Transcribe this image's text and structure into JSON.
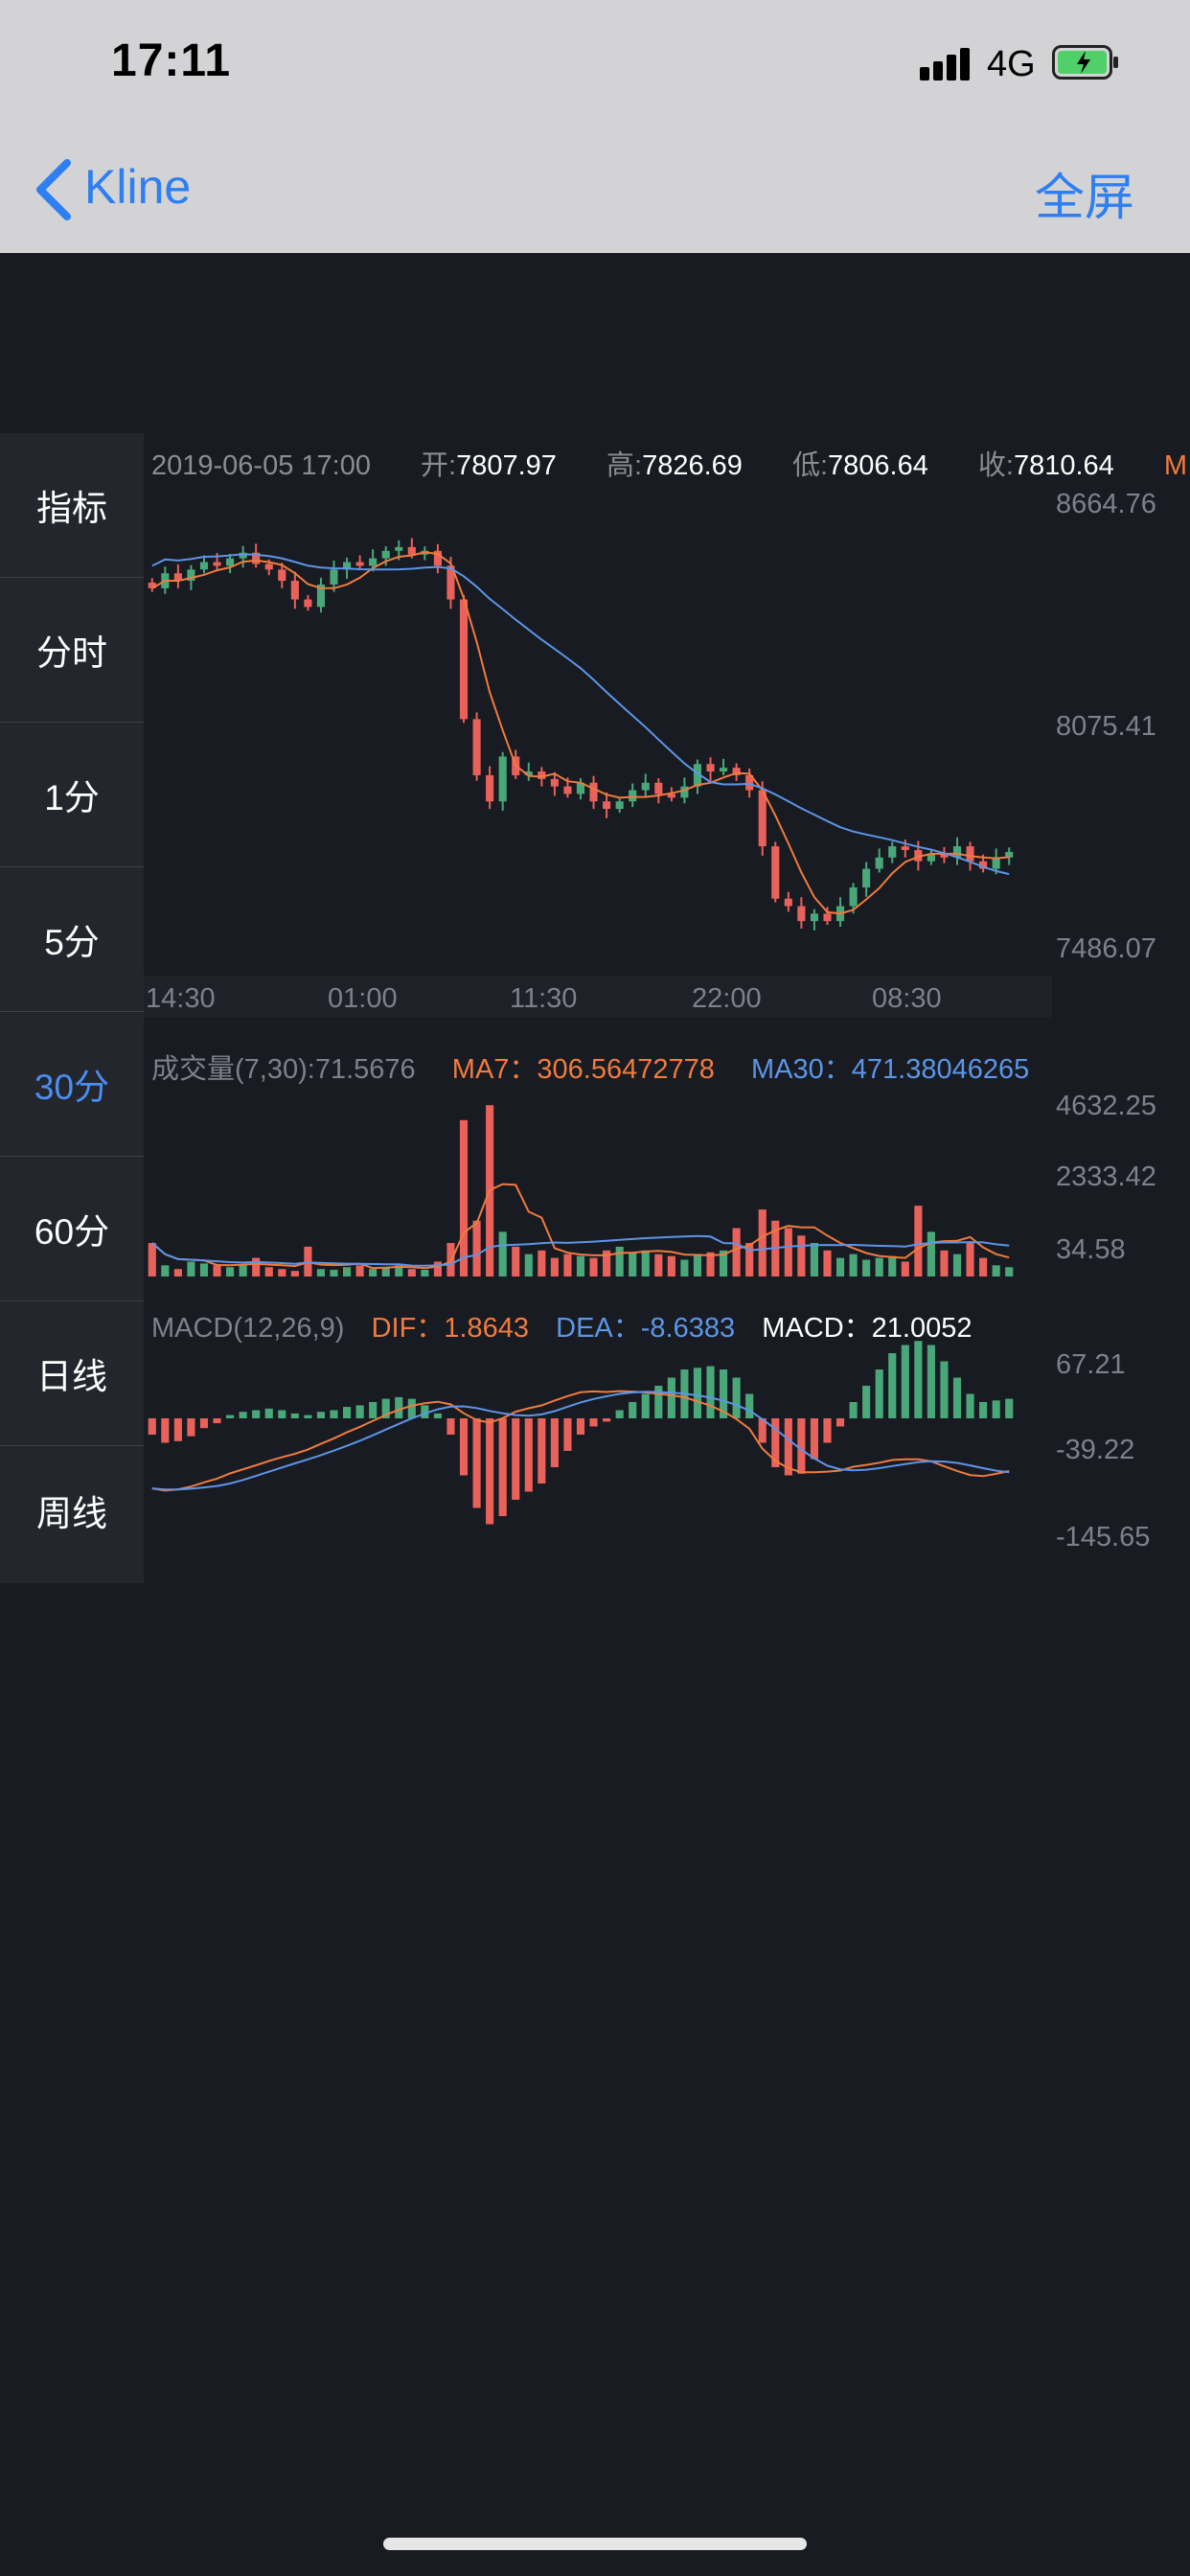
{
  "status_bar": {
    "time": "17:11",
    "carrier": "4G"
  },
  "nav": {
    "back_label": "Kline",
    "fullscreen_label": "全屏"
  },
  "sidebar": {
    "items": [
      {
        "label": "指标"
      },
      {
        "label": "分时"
      },
      {
        "label": "1分"
      },
      {
        "label": "5分"
      },
      {
        "label": "30分"
      },
      {
        "label": "60分"
      },
      {
        "label": "日线"
      },
      {
        "label": "周线"
      }
    ],
    "active_index": 4
  },
  "info_bar": {
    "datetime": "2019-06-05 17:00",
    "open_label": "开:",
    "open": "7807.97",
    "high_label": "高:",
    "high": "7826.69",
    "low_label": "低:",
    "low": "7806.64",
    "close_label": "收:",
    "close": "7810.64",
    "overflow": "M"
  },
  "price_axis": [
    "8664.76",
    "8075.41",
    "7486.07"
  ],
  "time_axis": [
    "14:30",
    "01:00",
    "11:30",
    "22:00",
    "08:30"
  ],
  "volume": {
    "label": "成交量(7,30):71.5676",
    "ma7_label": "MA7：306.56472778",
    "ma30_label": "MA30：471.38046265",
    "axis": [
      "4632.25",
      "2333.42",
      "34.58"
    ]
  },
  "macd": {
    "label": "MACD(12,26,9)",
    "dif_label": "DIF：1.8643",
    "dea_label": "DEA：-8.6383",
    "macd_label": "MACD：21.0052",
    "axis": [
      "67.21",
      "-39.22",
      "-145.65"
    ]
  },
  "colors": {
    "up": "#4aa77a",
    "down": "#e9615b",
    "ma_short": "#f07b3f",
    "ma_long": "#5d95e8",
    "accent": "#2e7ff2",
    "active": "#4b8df0"
  },
  "chart_data": {
    "type": "candlestick",
    "ylim": [
      7486.07,
      8664.76
    ],
    "candles_close": [
      8450,
      8490,
      8470,
      8500,
      8520,
      8510,
      8530,
      8545,
      8515,
      8500,
      8470,
      8420,
      8400,
      8460,
      8500,
      8520,
      8510,
      8530,
      8550,
      8560,
      8540,
      8550,
      8510,
      8420,
      8100,
      7950,
      7880,
      8000,
      7950,
      7960,
      7940,
      7920,
      7900,
      7930,
      7880,
      7860,
      7880,
      7910,
      7930,
      7900,
      7890,
      7920,
      7980,
      7960,
      7970,
      7950,
      7910,
      7760,
      7620,
      7600,
      7560,
      7580,
      7560,
      7600,
      7650,
      7700,
      7730,
      7760,
      7750,
      7720,
      7740,
      7730,
      7760,
      7720,
      7700,
      7730,
      7745
    ],
    "volume_series": [
      900,
      300,
      200,
      400,
      350,
      300,
      250,
      300,
      500,
      250,
      200,
      150,
      800,
      200,
      180,
      250,
      300,
      200,
      250,
      300,
      200,
      180,
      400,
      900,
      4200,
      1500,
      4600,
      1200,
      800,
      600,
      700,
      500,
      600,
      550,
      500,
      700,
      800,
      650,
      700,
      600,
      550,
      450,
      600,
      650,
      700,
      1300,
      900,
      1800,
      1500,
      1300,
      1100,
      900,
      700,
      500,
      600,
      450,
      500,
      550,
      400,
      1900,
      1200,
      700,
      600,
      900,
      500,
      300,
      250
    ],
    "macd_hist": [
      -20,
      -30,
      -28,
      -22,
      -12,
      -6,
      4,
      8,
      10,
      12,
      10,
      6,
      4,
      8,
      10,
      14,
      16,
      20,
      24,
      26,
      24,
      16,
      6,
      -20,
      -70,
      -110,
      -130,
      -120,
      -100,
      -90,
      -80,
      -60,
      -40,
      -20,
      -10,
      -4,
      10,
      20,
      30,
      40,
      50,
      60,
      62,
      64,
      60,
      50,
      30,
      -30,
      -60,
      -70,
      -68,
      -50,
      -30,
      -10,
      20,
      40,
      60,
      80,
      90,
      95,
      90,
      70,
      50,
      30,
      20,
      22,
      24
    ]
  }
}
